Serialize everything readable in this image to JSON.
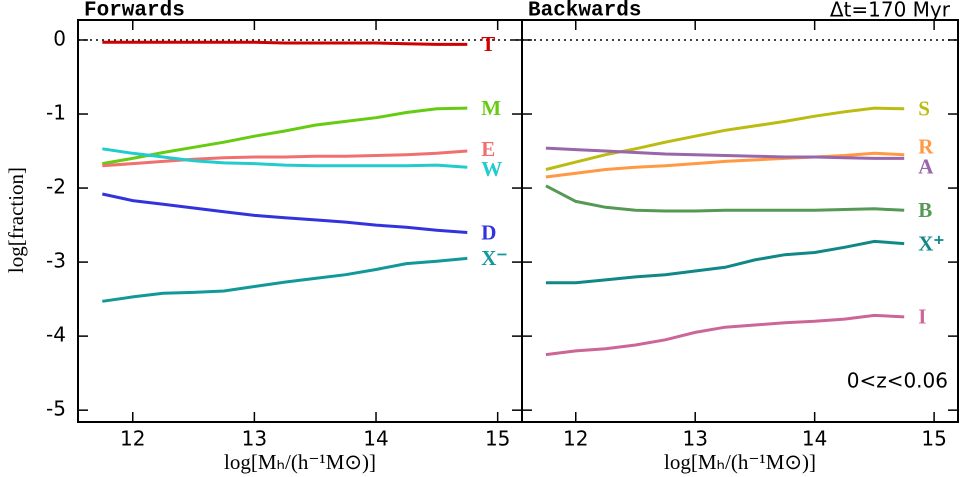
{
  "chart_data": [
    {
      "type": "line",
      "title": "Forwards",
      "y_label": "log[fraction]",
      "x_label": "log[Mₕ/(h⁻¹M⊙)]",
      "xlim": [
        11.55,
        15.2
      ],
      "xticks": [
        12,
        13,
        14,
        15
      ],
      "ylim": [
        -5.16,
        0.27
      ],
      "yticks": [
        0,
        -1,
        -2,
        -3,
        -4,
        -5
      ],
      "ytick_labels": true,
      "reference_line": 0,
      "x": [
        11.75,
        12,
        12.25,
        12.5,
        12.75,
        13,
        13.25,
        13.5,
        13.75,
        14,
        14.25,
        14.5,
        14.75
      ],
      "series": [
        {
          "name": "T",
          "color": "#d00000",
          "values": [
            -0.03,
            -0.03,
            -0.03,
            -0.03,
            -0.03,
            -0.03,
            -0.04,
            -0.04,
            -0.04,
            -0.04,
            -0.05,
            -0.06,
            -0.06
          ]
        },
        {
          "name": "M",
          "color": "#66cc11",
          "values": [
            -1.67,
            -1.6,
            -1.52,
            -1.45,
            -1.38,
            -1.3,
            -1.23,
            -1.15,
            -1.1,
            -1.05,
            -0.98,
            -0.93,
            -0.92
          ]
        },
        {
          "name": "E",
          "color": "#f07070",
          "values": [
            -1.7,
            -1.67,
            -1.64,
            -1.61,
            -1.59,
            -1.58,
            -1.58,
            -1.57,
            -1.57,
            -1.56,
            -1.55,
            -1.53,
            -1.5
          ]
        },
        {
          "name": "W",
          "color": "#22cccc",
          "values": [
            -1.47,
            -1.53,
            -1.58,
            -1.63,
            -1.66,
            -1.67,
            -1.69,
            -1.7,
            -1.7,
            -1.7,
            -1.7,
            -1.69,
            -1.72
          ]
        },
        {
          "name": "D",
          "color": "#3333dd",
          "values": [
            -2.08,
            -2.17,
            -2.22,
            -2.27,
            -2.32,
            -2.37,
            -2.4,
            -2.43,
            -2.46,
            -2.5,
            -2.53,
            -2.57,
            -2.6
          ]
        },
        {
          "name": "X⁻",
          "color": "#119999",
          "values": [
            -3.53,
            -3.47,
            -3.42,
            -3.41,
            -3.39,
            -3.33,
            -3.27,
            -3.22,
            -3.17,
            -3.1,
            -3.02,
            -2.99,
            -2.95
          ]
        }
      ]
    },
    {
      "type": "line",
      "title": "Backwards",
      "annotation": "Δt=170 Myr",
      "note": "0<z<0.06",
      "x_label": "log[Mₕ/(h⁻¹M⊙)]",
      "xlim": [
        11.55,
        15.2
      ],
      "xticks": [
        12,
        13,
        14,
        15
      ],
      "ylim": [
        -5.16,
        0.27
      ],
      "yticks": [
        0,
        -1,
        -2,
        -3,
        -4,
        -5
      ],
      "ytick_labels": false,
      "reference_line": 0,
      "x": [
        11.75,
        12,
        12.25,
        12.5,
        12.75,
        13,
        13.25,
        13.5,
        13.75,
        14,
        14.25,
        14.5,
        14.75
      ],
      "series": [
        {
          "name": "S",
          "color": "#bbbb11",
          "values": [
            -1.75,
            -1.65,
            -1.55,
            -1.47,
            -1.38,
            -1.3,
            -1.22,
            -1.16,
            -1.1,
            -1.03,
            -0.97,
            -0.92,
            -0.93
          ]
        },
        {
          "name": "R",
          "color": "#ff9944",
          "values": [
            -1.85,
            -1.8,
            -1.75,
            -1.72,
            -1.7,
            -1.67,
            -1.64,
            -1.62,
            -1.6,
            -1.58,
            -1.56,
            -1.53,
            -1.55
          ]
        },
        {
          "name": "A",
          "color": "#9966aa",
          "values": [
            -1.46,
            -1.48,
            -1.5,
            -1.52,
            -1.54,
            -1.55,
            -1.56,
            -1.57,
            -1.58,
            -1.58,
            -1.59,
            -1.6,
            -1.6
          ]
        },
        {
          "name": "B",
          "color": "#559955",
          "values": [
            -1.97,
            -2.18,
            -2.26,
            -2.3,
            -2.31,
            -2.31,
            -2.3,
            -2.3,
            -2.3,
            -2.3,
            -2.29,
            -2.28,
            -2.3
          ]
        },
        {
          "name": "X⁺",
          "color": "#118888",
          "values": [
            -3.28,
            -3.28,
            -3.24,
            -3.2,
            -3.17,
            -3.12,
            -3.07,
            -2.97,
            -2.9,
            -2.87,
            -2.8,
            -2.72,
            -2.75
          ]
        },
        {
          "name": "I",
          "color": "#cc6699",
          "values": [
            -4.25,
            -4.2,
            -4.17,
            -4.12,
            -4.05,
            -3.95,
            -3.88,
            -3.85,
            -3.82,
            -3.8,
            -3.77,
            -3.72,
            -3.74
          ]
        }
      ]
    }
  ]
}
